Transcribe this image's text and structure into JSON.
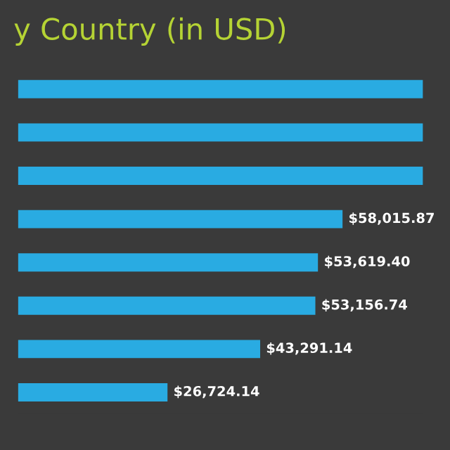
{
  "chart_data": {
    "type": "bar",
    "orientation": "horizontal",
    "title": "y Country (in USD)",
    "categories": [
      null,
      null,
      null,
      null,
      null,
      null,
      null,
      null
    ],
    "values": [
      72400,
      72400,
      72400,
      58015.87,
      53619.4,
      53156.74,
      43291.14,
      26724.14
    ],
    "value_labels": [
      null,
      null,
      null,
      "$58,015.87",
      "$53,619.40",
      "$53,156.74",
      "$43,291.14",
      "$26,724.14"
    ],
    "color": "#29abe2",
    "xlim": [
      0,
      72400
    ],
    "tick_labels": false,
    "grid": false,
    "legend": false
  }
}
